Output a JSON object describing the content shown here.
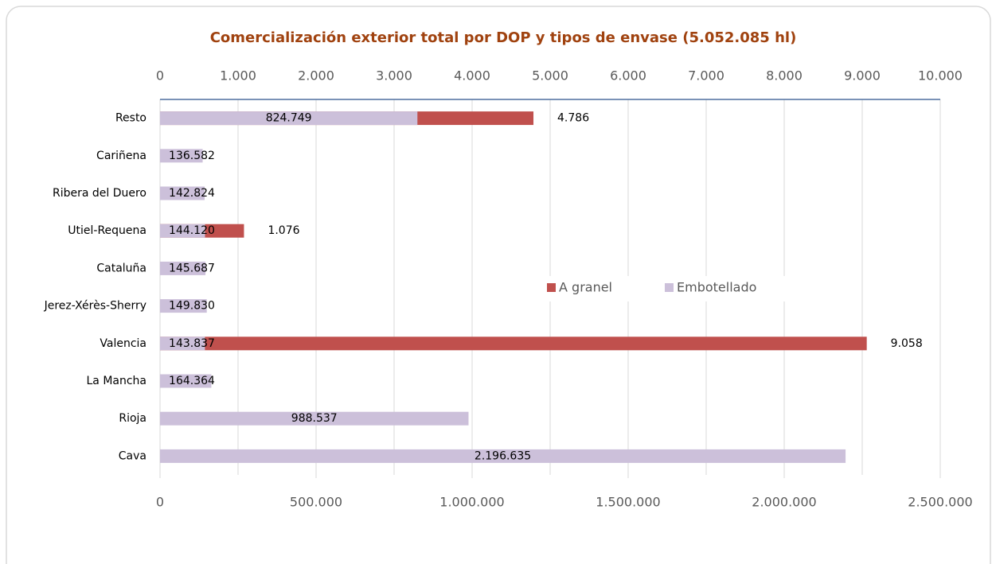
{
  "chart_data": {
    "type": "bar",
    "orientation": "horizontal",
    "title": "Comercialización exterior total por DOP y tipos de envase (5.052.085 hl)",
    "categories": [
      "Resto",
      "Cariñena",
      "Ribera del Duero",
      "Utiel-Requena",
      "Cataluña",
      "Jerez-Xérès-Sherry",
      "Valencia",
      "La Mancha",
      "Rioja",
      "Cava"
    ],
    "series": [
      {
        "name": "A granel",
        "color": "#c0504d",
        "axis": "x2",
        "values": [
          4786,
          null,
          null,
          1076,
          null,
          null,
          9058,
          null,
          null,
          null
        ],
        "value_labels": [
          "4.786",
          null,
          null,
          "1.076",
          null,
          null,
          "9.058",
          null,
          null,
          null
        ]
      },
      {
        "name": "Embotellado",
        "color": "#ccc0da",
        "values": [
          824749,
          136582,
          142824,
          144120,
          145687,
          149830,
          143837,
          164364,
          988537,
          2196635
        ],
        "value_labels": [
          "824.749",
          "136.582",
          "142.824",
          "144.120",
          "145.687",
          "149.830",
          "143.837",
          "164.364",
          "988.537",
          "2.196.635"
        ]
      }
    ],
    "xlim": [
      0,
      2500000
    ],
    "xticks": [
      0,
      {
        "value": 500000,
        "label": "500.000"
      },
      {
        "value": 1000000,
        "label": "1.000.000"
      },
      {
        "value": 1500000,
        "label": "1.500.000"
      },
      {
        "value": 2000000,
        "label": "2.000.000"
      },
      {
        "value": 2500000,
        "label": "2.500.000"
      }
    ],
    "x2lim": [
      0,
      10000
    ],
    "x2ticks": [
      0,
      {
        "value": 1000,
        "label": "1.000"
      },
      {
        "value": 2000,
        "label": "2.000"
      },
      {
        "value": 3000,
        "label": "3.000"
      },
      {
        "value": 4000,
        "label": "4.000"
      },
      {
        "value": 5000,
        "label": "5.000"
      },
      {
        "value": 6000,
        "label": "6.000"
      },
      {
        "value": 7000,
        "label": "7.000"
      },
      {
        "value": 8000,
        "label": "8.000"
      },
      {
        "value": 9000,
        "label": "9.000"
      },
      {
        "value": 10000,
        "label": "10.000"
      }
    ],
    "grid": true,
    "legend": "center"
  }
}
